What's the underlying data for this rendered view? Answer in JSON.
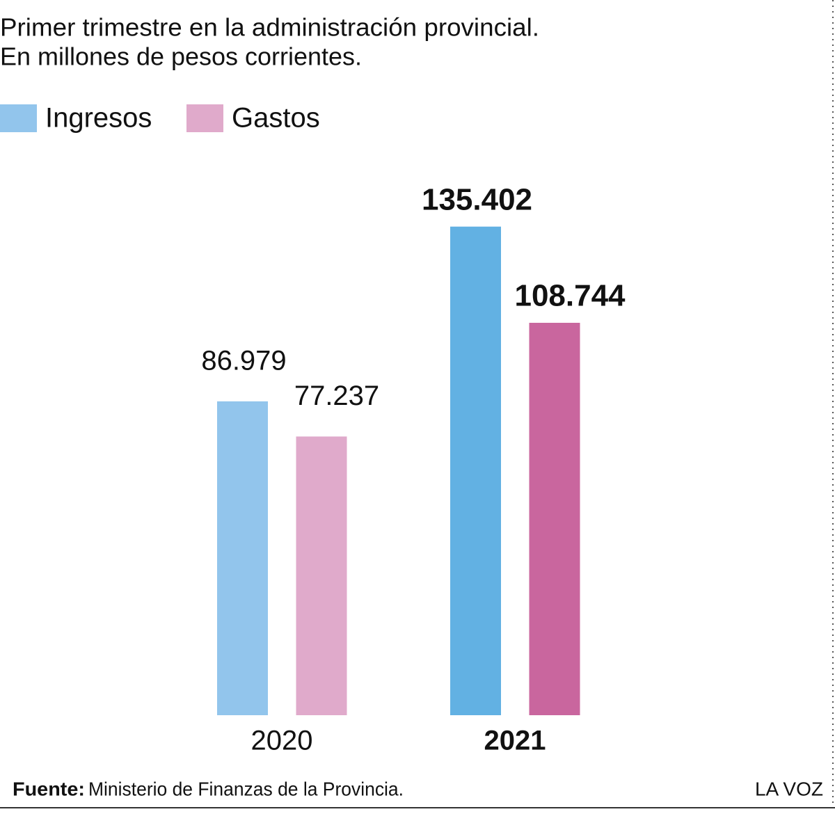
{
  "chart_data": {
    "type": "bar",
    "title": "Primer trimestre en la administración provincial.",
    "subtitle": "En millones de pesos corrientes.",
    "categories": [
      "2020",
      "2021"
    ],
    "series": [
      {
        "name": "Ingresos",
        "color": "#92c5ec",
        "bar_colors": [
          "#92c5ec",
          "#62b1e3"
        ],
        "values": [
          86979,
          135402
        ],
        "value_labels": [
          "86.979",
          "135.402"
        ]
      },
      {
        "name": "Gastos",
        "color": "#e0aacb",
        "bar_colors": [
          "#e0aacb",
          "#c9669e"
        ],
        "values": [
          77237,
          108744
        ],
        "value_labels": [
          "77.237",
          "108.744"
        ]
      }
    ],
    "ylim": [
      0,
      150000
    ],
    "grid": false,
    "source_label": "Fuente:",
    "source": "Ministerio de Finanzas de la Provincia.",
    "credit": "LA VOZ"
  }
}
